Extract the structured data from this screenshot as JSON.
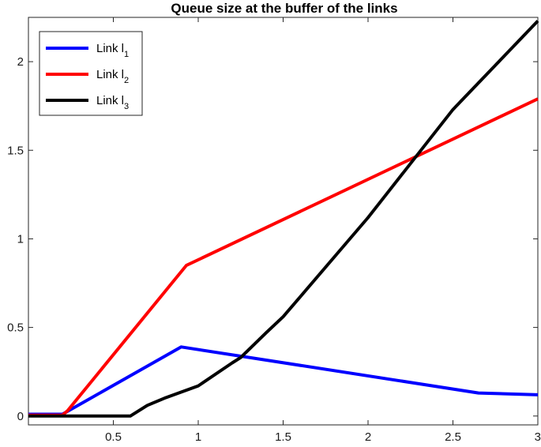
{
  "chart_data": {
    "type": "line",
    "title": "Queue size at the buffer of the links",
    "xlabel": "",
    "ylabel": "",
    "xlim": [
      0,
      3
    ],
    "ylim": [
      -0.05,
      2.25
    ],
    "x_ticks": [
      0.5,
      1,
      1.5,
      2,
      2.5,
      3
    ],
    "x_tick_labels": [
      "0.5",
      "1",
      "1.5",
      "2",
      "2.5",
      "3"
    ],
    "y_ticks": [
      0,
      0.5,
      1,
      1.5,
      2
    ],
    "y_tick_labels": [
      "0",
      "0.5",
      "1",
      "1.5",
      "2"
    ],
    "grid": false,
    "legend_position": "top-left",
    "series": [
      {
        "name": "Link l1",
        "label_main": "Link l",
        "label_sub": "1",
        "color": "#0000ff",
        "points": [
          [
            0,
            0.01
          ],
          [
            0.2,
            0.01
          ],
          [
            0.9,
            0.39
          ],
          [
            2.65,
            0.13
          ],
          [
            3.0,
            0.12
          ]
        ]
      },
      {
        "name": "Link l2",
        "label_main": "Link l",
        "label_sub": "2",
        "color": "#ff0000",
        "points": [
          [
            0,
            0.005
          ],
          [
            0.2,
            0.005
          ],
          [
            0.23,
            0.03
          ],
          [
            0.93,
            0.85
          ],
          [
            3.0,
            1.79
          ]
        ]
      },
      {
        "name": "Link l3",
        "label_main": "Link l",
        "label_sub": "3",
        "color": "#000000",
        "points": [
          [
            0,
            0.0
          ],
          [
            0.6,
            0.0
          ],
          [
            0.7,
            0.06
          ],
          [
            0.8,
            0.1
          ],
          [
            1.0,
            0.17
          ],
          [
            1.2,
            0.3
          ],
          [
            1.25,
            0.33
          ],
          [
            1.4,
            0.47
          ],
          [
            1.5,
            0.56
          ],
          [
            2.0,
            1.12
          ],
          [
            2.5,
            1.73
          ],
          [
            3.0,
            2.23
          ]
        ]
      }
    ]
  }
}
